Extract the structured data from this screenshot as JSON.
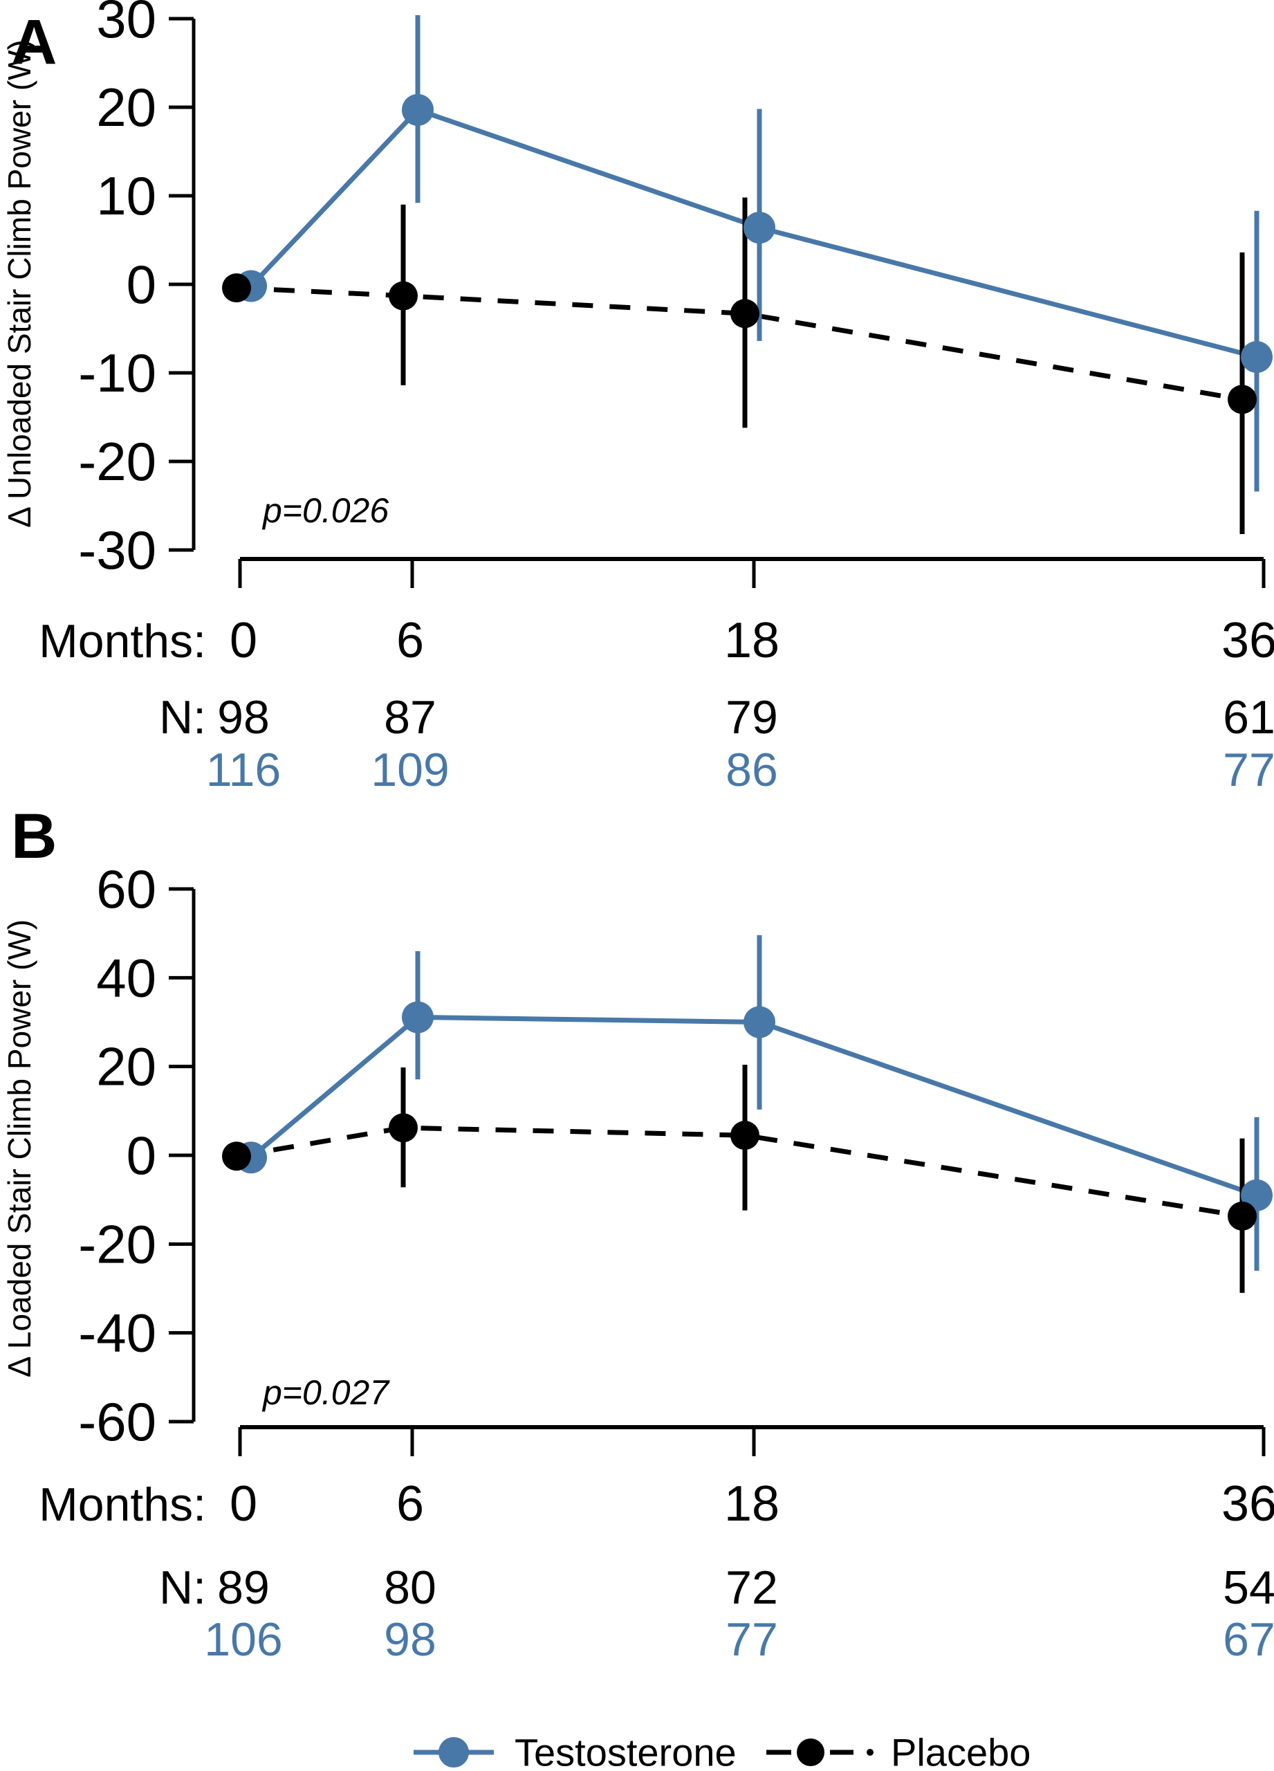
{
  "figure": {
    "months_row_label": "Months:",
    "n_row_label": "N:",
    "legend": {
      "testosterone_label": "Testosterone",
      "placebo_label": "Placebo"
    },
    "colors": {
      "testosterone": "#4878A8",
      "placebo": "#000000",
      "background": "#FFFFFF"
    }
  },
  "chart_data": [
    {
      "panel": "A",
      "type": "line",
      "title": "",
      "ylabel": "Δ Unloaded Stair Climb Power  (W)",
      "xlabel": "Months",
      "xlabel_months": [
        0,
        6,
        18,
        36
      ],
      "yticks": [
        30,
        20,
        10,
        0,
        -10,
        -20,
        -30
      ],
      "ylim": [
        -31,
        31
      ],
      "grid": false,
      "legend_position": "bottom",
      "p_label": "p=0.026",
      "series": [
        {
          "name": "Testosterone",
          "style": "solid",
          "color": "#4878A8",
          "values": [
            -0.2,
            19.7,
            6.4,
            -8.2
          ],
          "ci_low": [
            null,
            9.2,
            -6.4,
            -23.4
          ],
          "ci_high": [
            null,
            30.4,
            19.8,
            8.3
          ],
          "n": [
            116,
            109,
            86,
            77
          ]
        },
        {
          "name": "Placebo",
          "style": "dashed",
          "color": "#000000",
          "values": [
            -0.4,
            -1.3,
            -3.3,
            -13.0
          ],
          "ci_low": [
            null,
            -11.4,
            -16.2,
            -28.2
          ],
          "ci_high": [
            null,
            9.0,
            9.8,
            3.6
          ],
          "n": [
            98,
            87,
            79,
            61
          ]
        }
      ]
    },
    {
      "panel": "B",
      "type": "line",
      "title": "",
      "ylabel": "Δ Loaded Stair Climb Power (W)",
      "xlabel": "Months",
      "xlabel_months": [
        0,
        6,
        18,
        36
      ],
      "yticks": [
        60,
        40,
        20,
        0,
        -20,
        -40,
        -60
      ],
      "ylim": [
        -62,
        62
      ],
      "grid": false,
      "legend_position": "bottom",
      "p_label": "p=0.027",
      "series": [
        {
          "name": "Testosterone",
          "style": "solid",
          "color": "#4878A8",
          "values": [
            -0.5,
            31.1,
            30.0,
            -9.0
          ],
          "ci_low": [
            null,
            17.1,
            10.3,
            -26.0
          ],
          "ci_high": [
            null,
            46.0,
            49.6,
            8.6
          ],
          "n": [
            106,
            98,
            77,
            67
          ]
        },
        {
          "name": "Placebo",
          "style": "dashed",
          "color": "#000000",
          "values": [
            -0.2,
            6.2,
            4.5,
            -13.7
          ],
          "ci_low": [
            null,
            -7.2,
            -12.4,
            -31.0
          ],
          "ci_high": [
            null,
            19.8,
            20.4,
            3.8
          ],
          "n": [
            89,
            80,
            72,
            54
          ]
        }
      ]
    }
  ]
}
